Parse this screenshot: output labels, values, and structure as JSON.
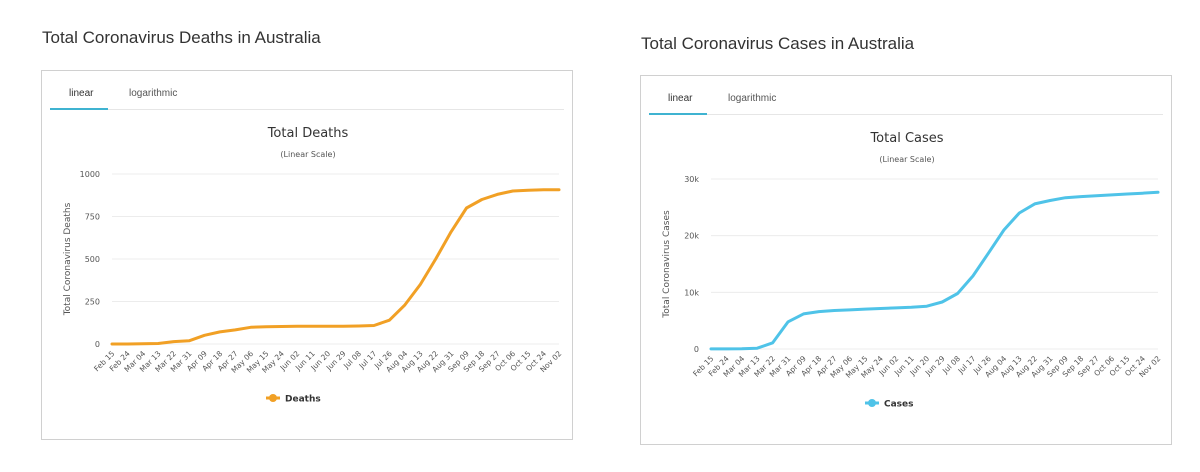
{
  "page": {
    "deaths_section_title": "Total Coronavirus Deaths in Australia",
    "cases_section_title": "Total Coronavirus Cases in Australia"
  },
  "tabs": {
    "linear": "linear",
    "logarithmic": "logarithmic"
  },
  "colors": {
    "deaths": "#f1a025",
    "cases": "#4fc3e8",
    "tab_accent": "#3fb3d1",
    "grid": "#ececec"
  },
  "chart_data": [
    {
      "type": "line",
      "title": "Total Deaths",
      "subtitle": "(Linear Scale)",
      "xlabel": "",
      "ylabel": "Total Coronavirus Deaths",
      "categories": [
        "Feb 15",
        "Feb 24",
        "Mar 04",
        "Mar 13",
        "Mar 22",
        "Mar 31",
        "Apr 09",
        "Apr 18",
        "Apr 27",
        "May 06",
        "May 15",
        "May 24",
        "Jun 02",
        "Jun 11",
        "Jun 20",
        "Jun 29",
        "Jul 08",
        "Jul 17",
        "Jul 26",
        "Aug 04",
        "Aug 13",
        "Aug 22",
        "Aug 31",
        "Sep 09",
        "Sep 18",
        "Sep 27",
        "Oct 06",
        "Oct 15",
        "Oct 24",
        "Nov 02"
      ],
      "ylim": [
        0,
        1000
      ],
      "yticks": [
        0,
        250,
        500,
        750,
        1000
      ],
      "ytick_labels": [
        "0",
        "250",
        "500",
        "750",
        "1000"
      ],
      "grid": true,
      "legend": "bottom-center",
      "series": [
        {
          "name": "Deaths",
          "values": [
            0,
            0,
            2,
            3,
            14,
            19,
            51,
            71,
            83,
            98,
            102,
            103,
            104,
            104,
            104,
            104,
            106,
            109,
            140,
            230,
            350,
            500,
            660,
            800,
            850,
            880,
            900,
            905,
            907,
            907
          ]
        }
      ]
    },
    {
      "type": "line",
      "title": "Total Cases",
      "subtitle": "(Linear Scale)",
      "xlabel": "",
      "ylabel": "Total Coronavirus Cases",
      "categories": [
        "Feb 15",
        "Feb 24",
        "Mar 04",
        "Mar 13",
        "Mar 22",
        "Mar 31",
        "Apr 09",
        "Apr 18",
        "Apr 27",
        "May 06",
        "May 15",
        "May 24",
        "Jun 02",
        "Jun 11",
        "Jun 20",
        "Jun 29",
        "Jul 08",
        "Jul 17",
        "Jul 26",
        "Aug 04",
        "Aug 13",
        "Aug 22",
        "Aug 31",
        "Sep 09",
        "Sep 18",
        "Sep 27",
        "Oct 06",
        "Oct 15",
        "Oct 24",
        "Nov 02"
      ],
      "ylim": [
        0,
        30000
      ],
      "yticks": [
        0,
        10000,
        20000,
        30000
      ],
      "ytick_labels": [
        "0",
        "10k",
        "20k",
        "30k"
      ],
      "grid": true,
      "legend": "bottom-center",
      "series": [
        {
          "name": "Cases",
          "values": [
            15,
            15,
            40,
            150,
            1100,
            4800,
            6200,
            6600,
            6800,
            6900,
            7050,
            7150,
            7250,
            7350,
            7550,
            8300,
            9800,
            12900,
            16900,
            21000,
            24000,
            25600,
            26200,
            26700,
            26900,
            27050,
            27200,
            27350,
            27500,
            27650
          ]
        }
      ]
    }
  ]
}
